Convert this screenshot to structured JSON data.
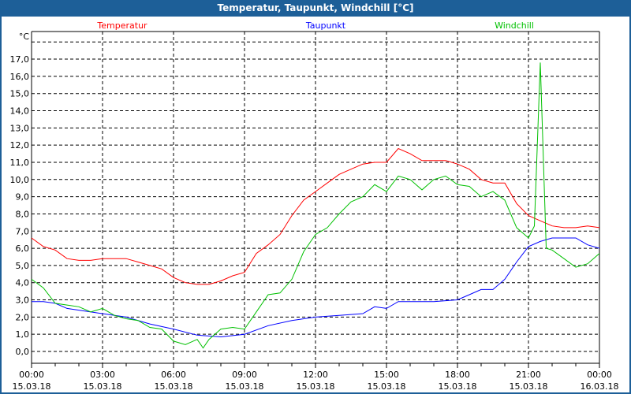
{
  "window": {
    "title": "Temperatur, Taupunkt, Windchill [°C]"
  },
  "chart_data": {
    "type": "line",
    "title": "Temperatur, Taupunkt, Windchill [°C]",
    "ylabel": "°C",
    "xlabel": "",
    "ylim": [
      -0.7,
      18.6
    ],
    "xlim_hours": [
      0,
      24
    ],
    "grid": true,
    "legend_placement": "top",
    "y_ticks": [
      "0,0",
      "1,0",
      "2,0",
      "3,0",
      "4,0",
      "5,0",
      "6,0",
      "7,0",
      "8,0",
      "9,0",
      "10,0",
      "11,0",
      "12,0",
      "13,0",
      "14,0",
      "15,0",
      "16,0",
      "17,0"
    ],
    "x_ticks": [
      {
        "time": "00:00",
        "date": "15.03.18"
      },
      {
        "time": "03:00",
        "date": "15.03.18"
      },
      {
        "time": "06:00",
        "date": "15.03.18"
      },
      {
        "time": "09:00",
        "date": "15.03.18"
      },
      {
        "time": "12:00",
        "date": "15.03.18"
      },
      {
        "time": "15:00",
        "date": "15.03.18"
      },
      {
        "time": "18:00",
        "date": "15.03.18"
      },
      {
        "time": "21:00",
        "date": "15.03.18"
      },
      {
        "time": "00:00",
        "date": "16.03.18"
      }
    ],
    "series": [
      {
        "name": "Temperatur",
        "color": "#ff0000",
        "x": [
          0,
          0.5,
          1,
          1.5,
          2,
          2.5,
          3,
          3.5,
          4,
          4.5,
          5,
          5.5,
          6,
          6.5,
          7,
          7.5,
          8,
          8.5,
          9,
          9.5,
          10,
          10.5,
          11,
          11.5,
          12,
          12.5,
          13,
          13.5,
          14,
          14.5,
          15,
          15.5,
          16,
          16.5,
          17,
          17.5,
          18,
          18.5,
          19,
          19.5,
          20,
          20.5,
          21,
          21.5,
          22,
          22.5,
          23,
          23.5,
          24
        ],
        "y": [
          6.6,
          6.1,
          5.9,
          5.4,
          5.3,
          5.3,
          5.4,
          5.4,
          5.4,
          5.2,
          5.0,
          4.8,
          4.3,
          4.0,
          3.9,
          3.9,
          4.1,
          4.4,
          4.6,
          5.7,
          6.2,
          6.8,
          7.9,
          8.8,
          9.3,
          9.8,
          10.3,
          10.6,
          10.9,
          11.0,
          11.0,
          11.8,
          11.5,
          11.1,
          11.1,
          11.1,
          10.9,
          10.6,
          10.0,
          9.8,
          9.8,
          8.6,
          7.9,
          7.6,
          7.3,
          7.2,
          7.2,
          7.3,
          7.2
        ]
      },
      {
        "name": "Taupunkt",
        "color": "#0000ff",
        "x": [
          0,
          0.5,
          1,
          1.5,
          2,
          3,
          4,
          5,
          6,
          7,
          7.5,
          8,
          9,
          10,
          11,
          12,
          13,
          14,
          14.5,
          15,
          15.5,
          16,
          17,
          18,
          18.5,
          19,
          19.5,
          20,
          20.5,
          21,
          21.5,
          22,
          23,
          23.5,
          24
        ],
        "y": [
          2.9,
          2.9,
          2.8,
          2.5,
          2.4,
          2.2,
          2.0,
          1.6,
          1.3,
          0.95,
          0.9,
          0.85,
          1.0,
          1.5,
          1.8,
          2.0,
          2.1,
          2.2,
          2.6,
          2.5,
          2.9,
          2.9,
          2.9,
          3.0,
          3.3,
          3.6,
          3.6,
          4.2,
          5.2,
          6.1,
          6.4,
          6.6,
          6.6,
          6.2,
          6.0
        ]
      },
      {
        "name": "Windchill",
        "color": "#00c000",
        "x": [
          0,
          0.5,
          1,
          1.5,
          2,
          2.5,
          3,
          3.5,
          4,
          4.5,
          5,
          5.5,
          6,
          6.5,
          7,
          7.25,
          7.5,
          8,
          8.5,
          9,
          9.5,
          10,
          10.5,
          11,
          11.5,
          12,
          12.5,
          13,
          13.5,
          14,
          14.5,
          15,
          15.5,
          16,
          16.5,
          17,
          17.5,
          18,
          18.5,
          19,
          19.5,
          20,
          20.5,
          21,
          21.25,
          21.5,
          21.75,
          22,
          22.5,
          23,
          23.5,
          24
        ],
        "y": [
          4.2,
          3.7,
          2.8,
          2.7,
          2.6,
          2.3,
          2.5,
          2.1,
          1.9,
          1.8,
          1.4,
          1.3,
          0.6,
          0.4,
          0.7,
          0.2,
          0.7,
          1.3,
          1.4,
          1.3,
          2.3,
          3.3,
          3.4,
          4.2,
          5.8,
          6.8,
          7.2,
          8.0,
          8.7,
          9.0,
          9.7,
          9.3,
          10.2,
          10.0,
          9.4,
          10.0,
          10.2,
          9.7,
          9.6,
          9.0,
          9.3,
          8.8,
          7.2,
          6.6,
          7.3,
          16.8,
          6.0,
          5.9,
          5.4,
          4.9,
          5.1,
          5.7
        ]
      }
    ]
  }
}
